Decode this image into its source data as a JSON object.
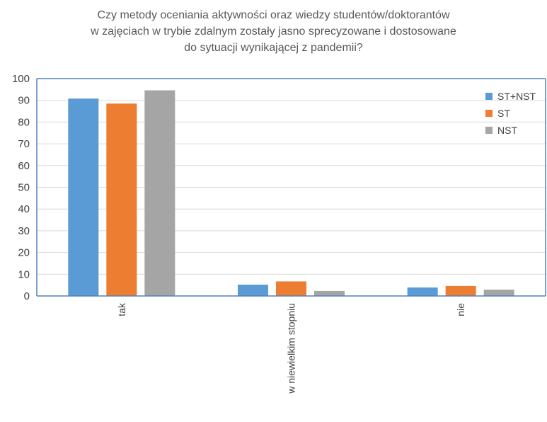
{
  "chart_data": {
    "type": "bar",
    "title_lines": [
      "Czy metody oceniania aktywności oraz wiedzy studentów/doktorantów",
      "w zajęciach w trybie zdalnym zostały jasno sprecyzowane i dostosowane",
      "do sytuacji wynikającej z pandemii?"
    ],
    "categories": [
      "tak",
      "w niewielkim stopniu",
      "nie"
    ],
    "series": [
      {
        "name": "ST+NST",
        "color": "#5b9bd5",
        "values": [
          90.8,
          5.2,
          3.9
        ]
      },
      {
        "name": "ST",
        "color": "#ed7d31",
        "values": [
          88.5,
          6.7,
          4.6
        ]
      },
      {
        "name": "NST",
        "color": "#a5a5a5",
        "values": [
          94.6,
          2.3,
          2.9
        ]
      }
    ],
    "ylim": [
      0,
      100
    ],
    "yticks": [
      "0",
      "10",
      "20",
      "30",
      "40",
      "50",
      "60",
      "70",
      "80",
      "90",
      "100"
    ],
    "grid": true,
    "legend_position": "top-right"
  }
}
